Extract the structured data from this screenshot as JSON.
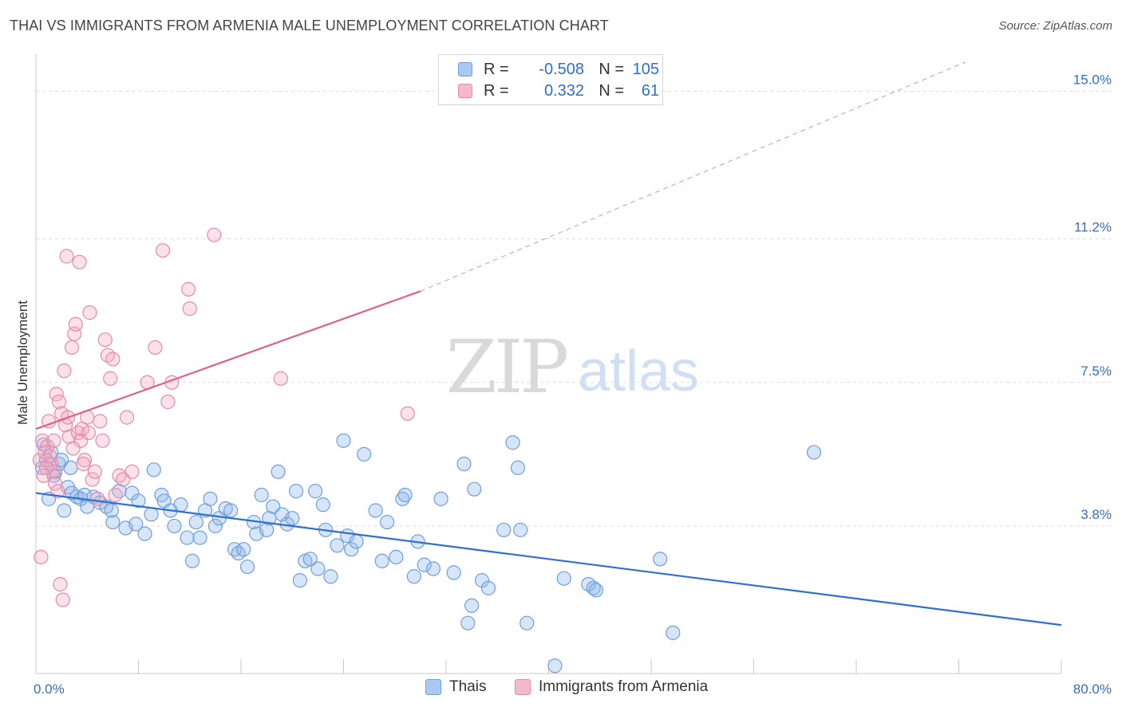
{
  "title": "THAI VS IMMIGRANTS FROM ARMENIA MALE UNEMPLOYMENT CORRELATION CHART",
  "source": "Source: ZipAtlas.com",
  "watermark": {
    "zip": "ZIP",
    "atlas": "atlas"
  },
  "legend": {
    "rows": [
      {
        "r_label": "R =",
        "r_value": "-0.508",
        "n_label": "N =",
        "n_value": "105",
        "color": "#a9c8f2",
        "border": "#6f9fdf"
      },
      {
        "r_label": "R =",
        "r_value": "0.332",
        "n_label": "N =",
        "n_value": "61",
        "color": "#f6b8cb",
        "border": "#e88aa8"
      }
    ]
  },
  "colors": {
    "thai_fill": "rgba(140,180,236,0.35)",
    "thai_stroke": "#6f9fdf",
    "thai_line": "#2f6fd0",
    "armenia_fill": "rgba(244,168,192,0.35)",
    "armenia_stroke": "#e88aa8",
    "armenia_line": "#e0608a",
    "tick_label": "#2f6fd0"
  },
  "chart_data": {
    "type": "scatter",
    "title": "THAI VS IMMIGRANTS FROM ARMENIA MALE UNEMPLOYMENT CORRELATION CHART",
    "xlabel": "",
    "ylabel": "Male Unemployment",
    "xlim": [
      0,
      80
    ],
    "ylim": [
      0,
      15.75
    ],
    "x_tick_labels": [
      "0.0%",
      "80.0%"
    ],
    "y_ticks": [
      3.8,
      7.5,
      11.2,
      15.0
    ],
    "y_tick_labels": [
      "3.8%",
      "7.5%",
      "11.2%",
      "15.0%"
    ],
    "grid": "horizontal-dashed",
    "legend_position": "top-center",
    "series": [
      {
        "name": "Thais",
        "R": -0.508,
        "N": 105,
        "trend": {
          "x0": 0,
          "y0": 4.65,
          "x1": 80,
          "y1": 1.25
        },
        "points": [
          [
            0.5,
            5.3
          ],
          [
            0.8,
            5.5
          ],
          [
            1.2,
            5.7
          ],
          [
            1.5,
            5.2
          ],
          [
            1.8,
            5.4
          ],
          [
            2.0,
            5.5
          ],
          [
            2.5,
            4.8
          ],
          [
            2.8,
            4.65
          ],
          [
            3.2,
            4.55
          ],
          [
            3.5,
            4.5
          ],
          [
            3.8,
            4.6
          ],
          [
            4.0,
            4.3
          ],
          [
            4.5,
            4.55
          ],
          [
            5.0,
            4.4
          ],
          [
            5.5,
            4.3
          ],
          [
            6.0,
            3.9
          ],
          [
            6.5,
            4.7
          ],
          [
            7.0,
            3.75
          ],
          [
            7.5,
            4.65
          ],
          [
            7.8,
            3.85
          ],
          [
            8.0,
            4.45
          ],
          [
            8.5,
            3.6
          ],
          [
            9.0,
            4.1
          ],
          [
            9.2,
            5.25
          ],
          [
            9.8,
            4.6
          ],
          [
            10.0,
            4.45
          ],
          [
            10.5,
            4.2
          ],
          [
            10.8,
            3.8
          ],
          [
            11.3,
            4.35
          ],
          [
            11.8,
            3.5
          ],
          [
            12.2,
            2.9
          ],
          [
            12.5,
            3.9
          ],
          [
            12.8,
            3.5
          ],
          [
            13.2,
            4.2
          ],
          [
            13.6,
            4.5
          ],
          [
            14.0,
            3.8
          ],
          [
            14.3,
            4.0
          ],
          [
            14.8,
            4.25
          ],
          [
            15.2,
            4.2
          ],
          [
            15.5,
            3.2
          ],
          [
            15.8,
            3.1
          ],
          [
            16.2,
            3.2
          ],
          [
            16.5,
            2.75
          ],
          [
            17.0,
            3.9
          ],
          [
            17.2,
            3.6
          ],
          [
            17.6,
            4.6
          ],
          [
            18.0,
            3.7
          ],
          [
            18.2,
            4.0
          ],
          [
            18.5,
            4.3
          ],
          [
            18.9,
            5.2
          ],
          [
            19.2,
            4.1
          ],
          [
            19.6,
            3.85
          ],
          [
            20.0,
            4.0
          ],
          [
            20.3,
            4.7
          ],
          [
            20.6,
            2.4
          ],
          [
            21.0,
            2.9
          ],
          [
            21.4,
            2.95
          ],
          [
            21.8,
            4.7
          ],
          [
            22.0,
            2.7
          ],
          [
            22.4,
            4.35
          ],
          [
            22.6,
            3.7
          ],
          [
            23.0,
            2.5
          ],
          [
            23.5,
            3.3
          ],
          [
            24.0,
            6.0
          ],
          [
            24.3,
            3.55
          ],
          [
            24.6,
            3.2
          ],
          [
            25.0,
            3.4
          ],
          [
            25.6,
            5.65
          ],
          [
            26.5,
            4.2
          ],
          [
            27.0,
            2.9
          ],
          [
            27.4,
            3.9
          ],
          [
            28.1,
            3.0
          ],
          [
            28.6,
            4.5
          ],
          [
            28.8,
            4.6
          ],
          [
            29.5,
            2.5
          ],
          [
            29.8,
            3.4
          ],
          [
            30.3,
            2.8
          ],
          [
            31.0,
            2.7
          ],
          [
            31.6,
            4.5
          ],
          [
            32.6,
            2.6
          ],
          [
            33.4,
            5.4
          ],
          [
            34.2,
            4.75
          ],
          [
            34.8,
            2.4
          ],
          [
            35.3,
            2.2
          ],
          [
            36.5,
            3.7
          ],
          [
            37.2,
            5.95
          ],
          [
            37.6,
            5.3
          ],
          [
            37.8,
            3.7
          ],
          [
            38.3,
            1.3
          ],
          [
            34.0,
            1.75
          ],
          [
            33.7,
            1.3
          ],
          [
            40.5,
            0.2
          ],
          [
            41.2,
            2.45
          ],
          [
            43.1,
            2.3
          ],
          [
            43.5,
            2.2
          ],
          [
            43.7,
            2.15
          ],
          [
            48.7,
            2.95
          ],
          [
            49.7,
            1.05
          ],
          [
            60.7,
            5.7
          ],
          [
            1.0,
            4.5
          ],
          [
            0.6,
            5.9
          ],
          [
            1.4,
            5.1
          ],
          [
            2.2,
            4.2
          ],
          [
            2.7,
            5.3
          ],
          [
            5.9,
            4.2
          ]
        ]
      },
      {
        "name": "Immigrants from Armenia",
        "R": 0.332,
        "N": 61,
        "trend": {
          "x0": 0,
          "y0": 6.3,
          "x1": 30,
          "y1": 9.85,
          "dash_x1": 72.5,
          "dash_y1": 15.75
        },
        "points": [
          [
            0.3,
            5.5
          ],
          [
            0.5,
            6.0
          ],
          [
            0.7,
            5.7
          ],
          [
            0.9,
            5.85
          ],
          [
            1.0,
            6.5
          ],
          [
            1.2,
            5.4
          ],
          [
            1.3,
            5.2
          ],
          [
            1.5,
            4.9
          ],
          [
            1.6,
            7.2
          ],
          [
            1.8,
            7.0
          ],
          [
            2.0,
            6.7
          ],
          [
            2.2,
            7.8
          ],
          [
            2.3,
            6.4
          ],
          [
            2.4,
            10.75
          ],
          [
            2.6,
            6.1
          ],
          [
            2.8,
            8.4
          ],
          [
            3.0,
            8.75
          ],
          [
            3.1,
            9.0
          ],
          [
            3.3,
            6.2
          ],
          [
            3.5,
            6.0
          ],
          [
            3.6,
            6.3
          ],
          [
            3.8,
            5.5
          ],
          [
            4.0,
            6.6
          ],
          [
            4.2,
            9.3
          ],
          [
            4.4,
            5.0
          ],
          [
            4.6,
            5.2
          ],
          [
            4.8,
            4.5
          ],
          [
            5.0,
            6.5
          ],
          [
            5.2,
            6.0
          ],
          [
            5.4,
            8.6
          ],
          [
            5.6,
            8.2
          ],
          [
            5.8,
            7.6
          ],
          [
            6.0,
            8.1
          ],
          [
            6.2,
            4.6
          ],
          [
            6.5,
            5.1
          ],
          [
            7.1,
            6.6
          ],
          [
            7.5,
            5.2
          ],
          [
            8.7,
            7.5
          ],
          [
            9.3,
            8.4
          ],
          [
            9.9,
            10.9
          ],
          [
            10.3,
            7.0
          ],
          [
            10.6,
            7.5
          ],
          [
            11.9,
            9.9
          ],
          [
            12.0,
            9.4
          ],
          [
            13.9,
            11.3
          ],
          [
            19.1,
            7.6
          ],
          [
            29.0,
            6.7
          ],
          [
            0.4,
            3.0
          ],
          [
            1.9,
            2.3
          ],
          [
            2.1,
            1.9
          ],
          [
            3.4,
            10.6
          ],
          [
            2.9,
            5.8
          ],
          [
            1.1,
            5.6
          ],
          [
            0.8,
            5.3
          ],
          [
            4.1,
            6.2
          ],
          [
            1.7,
            4.7
          ],
          [
            2.5,
            6.6
          ],
          [
            3.7,
            5.4
          ],
          [
            6.8,
            5.0
          ],
          [
            1.4,
            6.0
          ],
          [
            0.6,
            5.1
          ]
        ]
      }
    ]
  }
}
